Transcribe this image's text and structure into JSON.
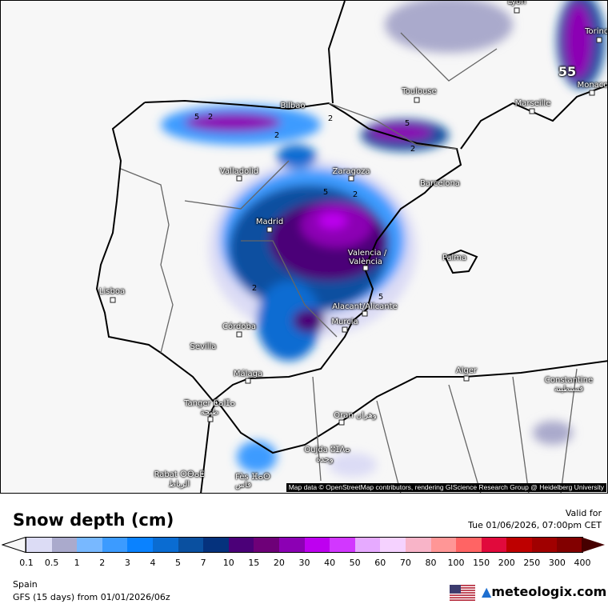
{
  "map": {
    "attribution": "Map data © OpenStreetMap contributors, rendering GIScience Research Group @ Heidelberg University",
    "max_label": "55",
    "contour_labels": [
      "5",
      "2",
      "2",
      "5",
      "2",
      "2",
      "2",
      "5",
      "2",
      "5"
    ],
    "cities": [
      "Lyon",
      "Torino",
      "Monaco",
      "Marseille",
      "Toulouse",
      "Bilbao",
      "Valladolid",
      "Zaragoza",
      "Barcelona",
      "Madrid",
      "Valencia /",
      "València",
      "Palma",
      "Lisboa",
      "Alacant/Alicante",
      "Murcia",
      "Córdoba",
      "Sevilla",
      "Málaga",
      "Tanger ⵟⴰⵏⵊⴰ",
      "طنجة",
      "Alger",
      "Constantine",
      "قسنطينة",
      "Oran وهران",
      "Oujda ⵓⵊⴷⴰ",
      "وجدة",
      "Rabat ⵔⴱⴰⵟ",
      "الرباط",
      "Fès ⴼⴰⵙ",
      "فاس"
    ]
  },
  "legend": {
    "title": "Snow depth (cm)",
    "valid_label": "Valid for",
    "valid_time": "Tue 01/06/2026, 07:00pm CET",
    "ticks": [
      "0.1",
      "0.5",
      "1",
      "2",
      "3",
      "4",
      "5",
      "7",
      "10",
      "15",
      "20",
      "30",
      "40",
      "50",
      "60",
      "70",
      "80",
      "100",
      "150",
      "200",
      "250",
      "300",
      "400"
    ],
    "colors": [
      "#dcdcf5",
      "#aaaacc",
      "#78b8ff",
      "#3c9bff",
      "#0a82ff",
      "#0a6cd2",
      "#0a50a0",
      "#05327d",
      "#4b0078",
      "#6e0078",
      "#8c00b4",
      "#be00f0",
      "#d237ff",
      "#e6aaff",
      "#f5d2ff",
      "#f8b4c8",
      "#ff9696",
      "#ff6464",
      "#e10a3c",
      "#be0000",
      "#a00000",
      "#820000"
    ],
    "under_color": "#f7f7f7",
    "over_color": "#460000"
  },
  "footer": {
    "region": "Spain",
    "model": "GFS (15 days) from  01/01/2026/06z",
    "brand": "meteologix.com",
    "flag_icon": "us-flag-icon"
  }
}
